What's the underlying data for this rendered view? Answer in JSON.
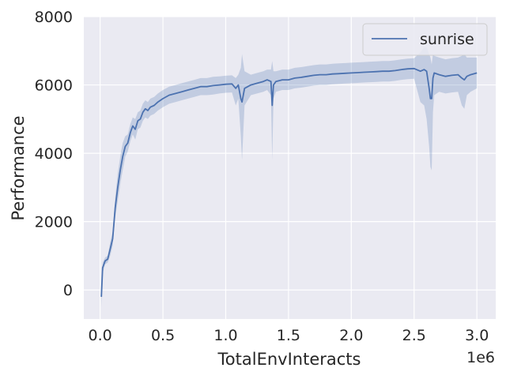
{
  "chart_data": {
    "type": "line",
    "title": "",
    "xlabel": "TotalEnvInteracts",
    "ylabel": "Performance",
    "x_offset_label": "1e6",
    "xlim": [
      -0.13,
      3.15
    ],
    "ylim": [
      -850,
      8000
    ],
    "xticks": [
      0.0,
      0.5,
      1.0,
      1.5,
      2.0,
      2.5,
      3.0
    ],
    "xtick_labels": [
      "0.0",
      "0.5",
      "1.0",
      "1.5",
      "2.0",
      "2.5",
      "3.0"
    ],
    "yticks": [
      0,
      2000,
      4000,
      6000,
      8000
    ],
    "ytick_labels": [
      "0",
      "2000",
      "4000",
      "6000",
      "8000"
    ],
    "grid": true,
    "legend": {
      "position": "top-right",
      "entries": [
        "sunrise"
      ]
    },
    "colors": {
      "line": "#4c72b0",
      "band": "#4c72b0",
      "background": "#eaeaf2",
      "grid": "#ffffff"
    },
    "series": [
      {
        "name": "sunrise",
        "x": [
          0.01,
          0.02,
          0.04,
          0.06,
          0.08,
          0.1,
          0.12,
          0.14,
          0.16,
          0.18,
          0.2,
          0.22,
          0.24,
          0.26,
          0.28,
          0.3,
          0.32,
          0.34,
          0.36,
          0.38,
          0.4,
          0.43,
          0.46,
          0.5,
          0.55,
          0.6,
          0.65,
          0.7,
          0.75,
          0.8,
          0.85,
          0.9,
          0.95,
          1.0,
          1.05,
          1.08,
          1.1,
          1.12,
          1.13,
          1.15,
          1.2,
          1.25,
          1.3,
          1.33,
          1.36,
          1.37,
          1.38,
          1.4,
          1.45,
          1.5,
          1.55,
          1.6,
          1.65,
          1.7,
          1.75,
          1.8,
          1.85,
          1.9,
          1.95,
          2.0,
          2.05,
          2.1,
          2.15,
          2.2,
          2.25,
          2.3,
          2.35,
          2.4,
          2.45,
          2.5,
          2.55,
          2.58,
          2.6,
          2.62,
          2.63,
          2.64,
          2.65,
          2.66,
          2.7,
          2.75,
          2.8,
          2.85,
          2.88,
          2.9,
          2.92,
          2.95,
          3.0
        ],
        "mean": [
          -200,
          650,
          850,
          900,
          1200,
          1500,
          2400,
          3000,
          3500,
          3900,
          4200,
          4300,
          4600,
          4800,
          4700,
          4950,
          5000,
          5200,
          5300,
          5250,
          5350,
          5400,
          5500,
          5600,
          5700,
          5750,
          5800,
          5850,
          5900,
          5950,
          5950,
          5980,
          6000,
          6020,
          6030,
          5900,
          6000,
          5600,
          5500,
          5900,
          6000,
          6050,
          6100,
          6150,
          6100,
          5400,
          6000,
          6100,
          6150,
          6150,
          6200,
          6220,
          6250,
          6280,
          6300,
          6300,
          6320,
          6330,
          6340,
          6350,
          6360,
          6370,
          6380,
          6390,
          6400,
          6400,
          6420,
          6450,
          6470,
          6480,
          6400,
          6450,
          6400,
          5900,
          5600,
          5600,
          6200,
          6350,
          6300,
          6250,
          6280,
          6300,
          6200,
          6150,
          6250,
          6300,
          6350
        ],
        "lower": [
          -500,
          500,
          750,
          800,
          1000,
          1300,
          2100,
          2600,
          3100,
          3500,
          3900,
          4050,
          4350,
          4550,
          4400,
          4700,
          4750,
          4950,
          5050,
          5000,
          5100,
          5150,
          5250,
          5350,
          5450,
          5500,
          5550,
          5600,
          5650,
          5700,
          5700,
          5720,
          5750,
          5770,
          5780,
          5400,
          5600,
          4500,
          3800,
          5400,
          5700,
          5750,
          5800,
          5850,
          5700,
          3800,
          5600,
          5800,
          5850,
          5850,
          5900,
          5920,
          5950,
          5980,
          6000,
          6000,
          6020,
          6030,
          6040,
          6050,
          6060,
          6070,
          6080,
          6090,
          6100,
          6100,
          6120,
          6150,
          6170,
          6180,
          5500,
          5400,
          5000,
          4200,
          3600,
          3500,
          5200,
          5700,
          5800,
          5750,
          5780,
          5800,
          5400,
          5300,
          5700,
          5800,
          5900
        ],
        "upper": [
          0,
          800,
          950,
          1000,
          1400,
          1700,
          2700,
          3400,
          3900,
          4300,
          4500,
          4550,
          4850,
          5050,
          5000,
          5200,
          5250,
          5450,
          5550,
          5500,
          5600,
          5650,
          5750,
          5850,
          5950,
          6000,
          6050,
          6100,
          6150,
          6200,
          6200,
          6240,
          6250,
          6270,
          6280,
          6200,
          6300,
          6500,
          6900,
          6400,
          6300,
          6350,
          6400,
          6450,
          6450,
          6700,
          6400,
          6400,
          6450,
          6450,
          6500,
          6520,
          6550,
          6580,
          6600,
          6600,
          6620,
          6630,
          6640,
          6650,
          6660,
          6670,
          6680,
          6690,
          6700,
          6700,
          6720,
          6750,
          6770,
          6780,
          6950,
          7100,
          7100,
          6900,
          6800,
          6600,
          6900,
          6850,
          6800,
          6750,
          6780,
          6800,
          6850,
          6900,
          6800,
          6800,
          6800
        ]
      }
    ]
  }
}
